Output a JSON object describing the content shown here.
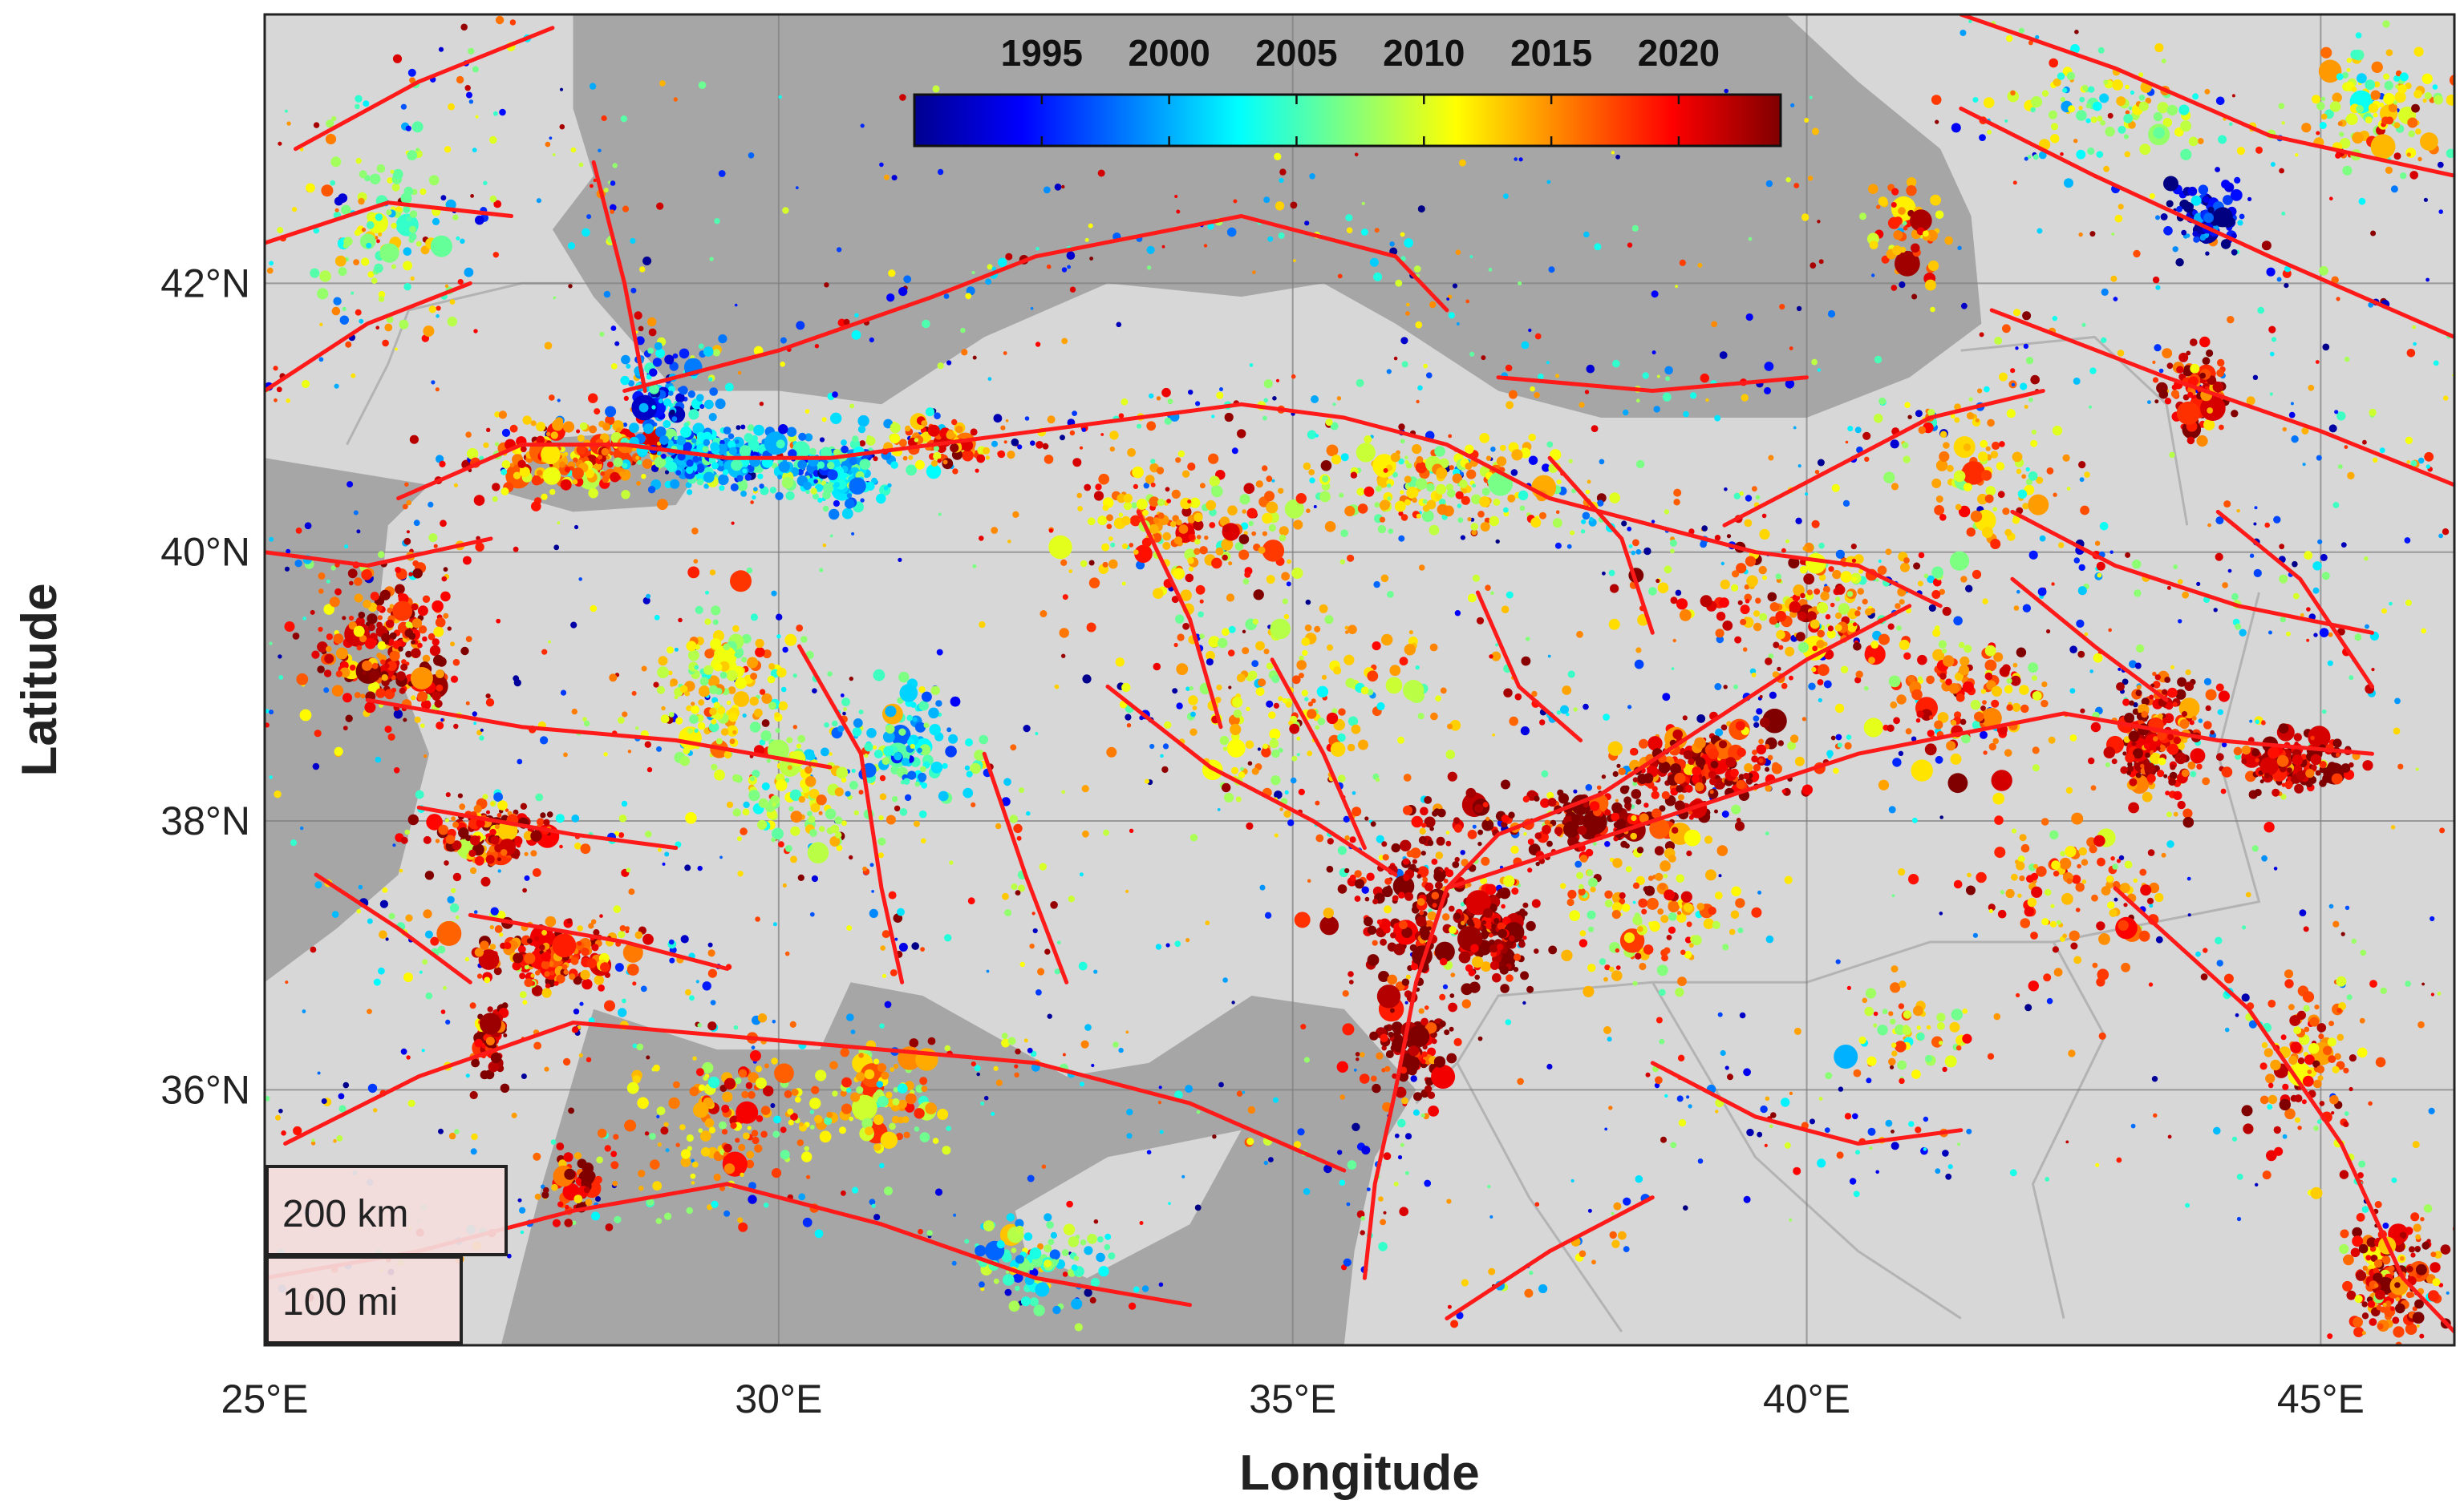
{
  "chart_data": {
    "type": "scatter",
    "title": "",
    "xlabel": "Longitude",
    "ylabel": "Latitude",
    "xlim": [
      25,
      46.3
    ],
    "ylim": [
      34.1,
      44
    ],
    "x_ticks": [
      25,
      30,
      35,
      40,
      45
    ],
    "x_tick_labels": [
      "25°E",
      "30°E",
      "35°E",
      "40°E",
      "45°E"
    ],
    "y_ticks": [
      36,
      38,
      40,
      42
    ],
    "y_tick_labels": [
      "36°N",
      "38°N",
      "40°N",
      "42°N"
    ],
    "grid": true,
    "colorbar": {
      "placement": "top-center",
      "colormap": "jet",
      "range": [
        1990,
        2024
      ],
      "ticks": [
        1995,
        2000,
        2005,
        2010,
        2015,
        2020
      ],
      "tick_labels": [
        "1995",
        "2000",
        "2005",
        "2010",
        "2015",
        "2020"
      ]
    },
    "scale_bar": {
      "placement": "bottom-left",
      "labels": [
        "200 km",
        "100 mi"
      ]
    },
    "colors": {
      "sea": "#a6a6a6",
      "land": "#d7d7d7",
      "border": "#b3b3b3",
      "fault": "#ff1a1a",
      "grid": "#7f7f7f"
    },
    "clusters": [
      {
        "lon": 26.2,
        "lat": 39.3,
        "sx": 0.6,
        "sy": 0.5,
        "n": 260,
        "year": 2019
      },
      {
        "lon": 27.2,
        "lat": 37.9,
        "sx": 0.5,
        "sy": 0.2,
        "n": 160,
        "year": 2020
      },
      {
        "lon": 27.8,
        "lat": 37.0,
        "sx": 0.6,
        "sy": 0.2,
        "n": 180,
        "year": 2018
      },
      {
        "lon": 27.2,
        "lat": 36.4,
        "sx": 0.15,
        "sy": 0.2,
        "n": 70,
        "year": 2021
      },
      {
        "lon": 28.0,
        "lat": 35.3,
        "sx": 0.3,
        "sy": 0.2,
        "n": 60,
        "year": 2020
      },
      {
        "lon": 28.1,
        "lat": 40.7,
        "sx": 0.8,
        "sy": 0.25,
        "n": 200,
        "year": 2016
      },
      {
        "lon": 29.3,
        "lat": 40.7,
        "sx": 0.6,
        "sy": 0.2,
        "n": 220,
        "year": 2000
      },
      {
        "lon": 28.9,
        "lat": 41.2,
        "sx": 0.4,
        "sy": 0.3,
        "n": 100,
        "year": 1999
      },
      {
        "lon": 30.5,
        "lat": 40.6,
        "sx": 0.5,
        "sy": 0.2,
        "n": 160,
        "year": 2002
      },
      {
        "lon": 31.5,
        "lat": 40.8,
        "sx": 0.4,
        "sy": 0.15,
        "n": 90,
        "year": 2015
      },
      {
        "lon": 29.5,
        "lat": 39.0,
        "sx": 0.6,
        "sy": 0.5,
        "n": 160,
        "year": 2011
      },
      {
        "lon": 30.2,
        "lat": 38.2,
        "sx": 0.6,
        "sy": 0.4,
        "n": 120,
        "year": 2010
      },
      {
        "lon": 31.3,
        "lat": 38.6,
        "sx": 0.5,
        "sy": 0.4,
        "n": 120,
        "year": 2003
      },
      {
        "lon": 29.5,
        "lat": 35.8,
        "sx": 0.8,
        "sy": 0.4,
        "n": 140,
        "year": 2014
      },
      {
        "lon": 31.0,
        "lat": 35.9,
        "sx": 0.6,
        "sy": 0.3,
        "n": 100,
        "year": 2013
      },
      {
        "lon": 32.5,
        "lat": 34.7,
        "sx": 0.5,
        "sy": 0.3,
        "n": 90,
        "year": 2005
      },
      {
        "lon": 33.8,
        "lat": 40.2,
        "sx": 1.0,
        "sy": 0.4,
        "n": 200,
        "year": 2014
      },
      {
        "lon": 36.5,
        "lat": 40.5,
        "sx": 1.0,
        "sy": 0.3,
        "n": 180,
        "year": 2012
      },
      {
        "lon": 35.0,
        "lat": 38.9,
        "sx": 1.2,
        "sy": 0.6,
        "n": 160,
        "year": 2012
      },
      {
        "lon": 36.2,
        "lat": 37.4,
        "sx": 0.6,
        "sy": 0.6,
        "n": 200,
        "year": 2022
      },
      {
        "lon": 37.0,
        "lat": 37.2,
        "sx": 0.3,
        "sy": 0.3,
        "n": 140,
        "year": 2023
      },
      {
        "lon": 36.2,
        "lat": 36.3,
        "sx": 0.3,
        "sy": 0.3,
        "n": 100,
        "year": 2023
      },
      {
        "lon": 37.8,
        "lat": 38.0,
        "sx": 0.9,
        "sy": 0.2,
        "n": 160,
        "year": 2023
      },
      {
        "lon": 39.0,
        "lat": 38.4,
        "sx": 0.7,
        "sy": 0.25,
        "n": 200,
        "year": 2020
      },
      {
        "lon": 40.0,
        "lat": 39.6,
        "sx": 1.0,
        "sy": 0.4,
        "n": 200,
        "year": 2016
      },
      {
        "lon": 38.5,
        "lat": 37.3,
        "sx": 0.8,
        "sy": 0.5,
        "n": 140,
        "year": 2014
      },
      {
        "lon": 41.5,
        "lat": 38.9,
        "sx": 0.7,
        "sy": 0.4,
        "n": 140,
        "year": 2017
      },
      {
        "lon": 43.4,
        "lat": 38.6,
        "sx": 0.4,
        "sy": 0.4,
        "n": 200,
        "year": 2020
      },
      {
        "lon": 44.7,
        "lat": 38.4,
        "sx": 0.5,
        "sy": 0.2,
        "n": 140,
        "year": 2021
      },
      {
        "lon": 42.5,
        "lat": 37.5,
        "sx": 0.8,
        "sy": 0.5,
        "n": 120,
        "year": 2015
      },
      {
        "lon": 43.8,
        "lat": 41.2,
        "sx": 0.25,
        "sy": 0.25,
        "n": 120,
        "year": 2020
      },
      {
        "lon": 43.9,
        "lat": 42.5,
        "sx": 0.3,
        "sy": 0.2,
        "n": 100,
        "year": 1992
      },
      {
        "lon": 45.6,
        "lat": 43.3,
        "sx": 0.6,
        "sy": 0.4,
        "n": 120,
        "year": 2011
      },
      {
        "lon": 41.0,
        "lat": 42.4,
        "sx": 0.3,
        "sy": 0.3,
        "n": 60,
        "year": 2014
      },
      {
        "lon": 41.7,
        "lat": 40.6,
        "sx": 0.6,
        "sy": 0.5,
        "n": 100,
        "year": 2013
      },
      {
        "lon": 45.7,
        "lat": 34.6,
        "sx": 0.35,
        "sy": 0.35,
        "n": 180,
        "year": 2019
      },
      {
        "lon": 41.0,
        "lat": 36.4,
        "sx": 0.5,
        "sy": 0.3,
        "n": 60,
        "year": 2012
      },
      {
        "lon": 26.2,
        "lat": 42.4,
        "sx": 0.6,
        "sy": 0.5,
        "n": 100,
        "year": 2008
      },
      {
        "lon": 44.9,
        "lat": 36.2,
        "sx": 0.5,
        "sy": 0.6,
        "n": 100,
        "year": 2017
      },
      {
        "lon": 43.0,
        "lat": 43.3,
        "sx": 0.8,
        "sy": 0.3,
        "n": 80,
        "year": 2009
      }
    ],
    "faults": [
      [
        [
          26.3,
          40.4
        ],
        [
          27.5,
          40.8
        ],
        [
          28.5,
          40.8
        ],
        [
          29.5,
          40.7
        ],
        [
          30.5,
          40.7
        ],
        [
          31.5,
          40.8
        ],
        [
          32.5,
          40.9
        ],
        [
          33.5,
          41.0
        ],
        [
          34.5,
          41.1
        ],
        [
          35.5,
          41.0
        ],
        [
          36.5,
          40.8
        ],
        [
          37.5,
          40.4
        ],
        [
          38.5,
          40.2
        ],
        [
          39.5,
          40.0
        ],
        [
          40.5,
          39.9
        ],
        [
          41.3,
          39.6
        ]
      ],
      [
        [
          28.5,
          41.2
        ],
        [
          30.0,
          41.5
        ],
        [
          31.5,
          41.9
        ],
        [
          32.5,
          42.2
        ],
        [
          34.5,
          42.5
        ],
        [
          36.0,
          42.2
        ],
        [
          36.5,
          41.8
        ]
      ],
      [
        [
          37.0,
          41.3
        ],
        [
          38.5,
          41.2
        ],
        [
          40.0,
          41.3
        ]
      ],
      [
        [
          28.2,
          42.9
        ],
        [
          28.5,
          42.0
        ],
        [
          28.7,
          41.2
        ]
      ],
      [
        [
          41.0,
          39.6
        ],
        [
          40.0,
          39.2
        ],
        [
          39.0,
          38.7
        ],
        [
          38.0,
          38.2
        ],
        [
          37.0,
          37.9
        ],
        [
          36.5,
          37.5
        ],
        [
          36.2,
          36.8
        ],
        [
          36.0,
          36.0
        ],
        [
          35.8,
          35.3
        ],
        [
          35.7,
          34.6
        ]
      ],
      [
        [
          36.5,
          37.5
        ],
        [
          38.5,
          38.0
        ],
        [
          40.5,
          38.5
        ],
        [
          42.5,
          38.8
        ],
        [
          44.0,
          38.6
        ],
        [
          45.5,
          38.5
        ]
      ],
      [
        [
          43.0,
          37.5
        ],
        [
          44.3,
          36.6
        ],
        [
          45.2,
          35.6
        ],
        [
          45.8,
          34.6
        ],
        [
          46.3,
          34.2
        ]
      ],
      [
        [
          41.5,
          43.3
        ],
        [
          42.8,
          42.8
        ],
        [
          44.5,
          42.2
        ],
        [
          46.3,
          41.6
        ]
      ],
      [
        [
          41.5,
          44.0
        ],
        [
          43.0,
          43.6
        ],
        [
          44.5,
          43.1
        ],
        [
          46.3,
          42.8
        ]
      ],
      [
        [
          41.8,
          41.8
        ],
        [
          43.5,
          41.3
        ],
        [
          45.0,
          40.9
        ],
        [
          46.3,
          40.5
        ]
      ],
      [
        [
          26.0,
          38.9
        ],
        [
          27.5,
          38.7
        ],
        [
          29.0,
          38.6
        ],
        [
          30.5,
          38.4
        ]
      ],
      [
        [
          26.5,
          38.1
        ],
        [
          28.0,
          37.9
        ],
        [
          29.0,
          37.8
        ]
      ],
      [
        [
          27.0,
          37.3
        ],
        [
          28.5,
          37.1
        ],
        [
          29.5,
          36.9
        ]
      ],
      [
        [
          25.2,
          35.6
        ],
        [
          26.5,
          36.1
        ],
        [
          28.0,
          36.5
        ],
        [
          29.5,
          36.4
        ],
        [
          31.0,
          36.3
        ],
        [
          32.5,
          36.2
        ],
        [
          34.0,
          35.9
        ],
        [
          35.5,
          35.4
        ]
      ],
      [
        [
          25.0,
          34.6
        ],
        [
          26.5,
          34.8
        ],
        [
          28.0,
          35.1
        ],
        [
          29.5,
          35.3
        ],
        [
          31.0,
          35.0
        ],
        [
          32.5,
          34.6
        ],
        [
          34.0,
          34.4
        ]
      ],
      [
        [
          30.2,
          39.3
        ],
        [
          30.8,
          38.5
        ],
        [
          31.0,
          37.5
        ],
        [
          31.2,
          36.8
        ]
      ],
      [
        [
          32.0,
          38.5
        ],
        [
          32.4,
          37.6
        ],
        [
          32.8,
          36.8
        ]
      ],
      [
        [
          33.2,
          39.0
        ],
        [
          34.2,
          38.4
        ],
        [
          35.2,
          38.0
        ],
        [
          36.0,
          37.6
        ]
      ],
      [
        [
          33.5,
          40.3
        ],
        [
          34.0,
          39.5
        ],
        [
          34.3,
          38.7
        ]
      ],
      [
        [
          34.8,
          39.2
        ],
        [
          35.3,
          38.5
        ],
        [
          35.7,
          37.8
        ]
      ],
      [
        [
          36.8,
          39.7
        ],
        [
          37.2,
          39.0
        ],
        [
          37.8,
          38.6
        ]
      ],
      [
        [
          38.5,
          36.2
        ],
        [
          39.5,
          35.8
        ],
        [
          40.5,
          35.6
        ],
        [
          41.5,
          35.7
        ]
      ],
      [
        [
          36.5,
          34.3
        ],
        [
          37.5,
          34.8
        ],
        [
          38.5,
          35.2
        ]
      ],
      [
        [
          25.0,
          41.2
        ],
        [
          26.0,
          41.7
        ],
        [
          27.0,
          42.0
        ]
      ],
      [
        [
          25.3,
          43.0
        ],
        [
          26.5,
          43.5
        ],
        [
          27.8,
          43.9
        ]
      ],
      [
        [
          25.0,
          42.3
        ],
        [
          26.2,
          42.6
        ],
        [
          27.4,
          42.5
        ]
      ],
      [
        [
          42.0,
          40.3
        ],
        [
          43.0,
          39.9
        ],
        [
          44.2,
          39.6
        ],
        [
          45.5,
          39.4
        ]
      ],
      [
        [
          44.0,
          40.3
        ],
        [
          44.8,
          39.8
        ],
        [
          45.5,
          39.0
        ]
      ],
      [
        [
          25.0,
          40.0
        ],
        [
          26.0,
          39.9
        ],
        [
          27.2,
          40.1
        ]
      ],
      [
        [
          37.5,
          40.7
        ],
        [
          38.2,
          40.1
        ],
        [
          38.5,
          39.4
        ]
      ],
      [
        [
          39.2,
          40.2
        ],
        [
          40.2,
          40.6
        ],
        [
          41.2,
          41.0
        ],
        [
          42.3,
          41.2
        ]
      ],
      [
        [
          42.0,
          39.8
        ],
        [
          42.8,
          39.3
        ],
        [
          43.5,
          38.9
        ]
      ],
      [
        [
          25.5,
          37.6
        ],
        [
          26.3,
          37.2
        ],
        [
          27.0,
          36.8
        ]
      ]
    ],
    "sea_polygons": [
      [
        [
          28.0,
          44.0
        ],
        [
          28.0,
          43.3
        ],
        [
          28.2,
          42.8
        ],
        [
          27.8,
          42.4
        ],
        [
          28.2,
          41.9
        ],
        [
          29.0,
          41.2
        ],
        [
          30.0,
          41.2
        ],
        [
          31.0,
          41.1
        ],
        [
          32.0,
          41.6
        ],
        [
          33.2,
          42.0
        ],
        [
          34.5,
          41.9
        ],
        [
          35.3,
          42.0
        ],
        [
          36.0,
          41.7
        ],
        [
          37.0,
          41.2
        ],
        [
          38.0,
          41.0
        ],
        [
          39.0,
          41.0
        ],
        [
          40.0,
          41.0
        ],
        [
          41.0,
          41.3
        ],
        [
          41.7,
          41.7
        ],
        [
          41.6,
          42.5
        ],
        [
          41.3,
          43.0
        ],
        [
          40.5,
          43.5
        ],
        [
          39.8,
          44.0
        ]
      ],
      [
        [
          25.0,
          34.1
        ],
        [
          25.0,
          36.8
        ],
        [
          25.7,
          37.2
        ],
        [
          26.3,
          37.6
        ],
        [
          26.6,
          38.5
        ],
        [
          26.1,
          39.5
        ],
        [
          26.2,
          40.2
        ],
        [
          26.6,
          40.5
        ],
        [
          25.0,
          40.7
        ],
        [
          25.0,
          34.1
        ]
      ],
      [
        [
          27.3,
          34.1
        ],
        [
          27.7,
          35.3
        ],
        [
          28.2,
          36.6
        ],
        [
          29.4,
          36.3
        ],
        [
          30.4,
          36.3
        ],
        [
          30.7,
          36.8
        ],
        [
          31.4,
          36.7
        ],
        [
          32.8,
          36.1
        ],
        [
          33.6,
          36.2
        ],
        [
          34.6,
          36.7
        ],
        [
          35.5,
          36.6
        ],
        [
          36.2,
          36.0
        ],
        [
          35.8,
          35.5
        ],
        [
          35.6,
          34.8
        ],
        [
          35.5,
          34.1
        ]
      ],
      [
        [
          28.8,
          40.9
        ],
        [
          29.3,
          40.7
        ],
        [
          29.0,
          40.35
        ],
        [
          28.0,
          40.3
        ],
        [
          27.3,
          40.45
        ],
        [
          27.8,
          40.85
        ],
        [
          28.8,
          40.9
        ]
      ]
    ],
    "land_shapes": [
      [
        [
          32.3,
          35.1
        ],
        [
          33.2,
          35.5
        ],
        [
          34.5,
          35.7
        ],
        [
          34.0,
          35.0
        ],
        [
          33.0,
          34.6
        ],
        [
          32.4,
          34.8
        ]
      ],
      [
        [
          23.5,
          35.3
        ],
        [
          25.5,
          35.4
        ],
        [
          26.3,
          35.2
        ],
        [
          25.7,
          34.95
        ],
        [
          24.5,
          35.0
        ],
        [
          23.5,
          35.2
        ]
      ]
    ]
  }
}
